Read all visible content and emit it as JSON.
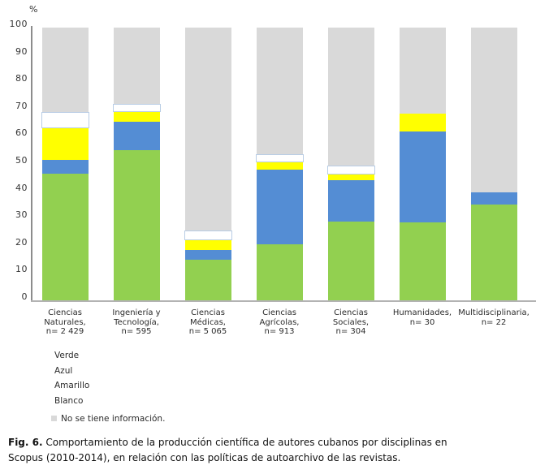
{
  "figure": {
    "caption": {
      "label": "Fig. 6.",
      "line1": "Comportamiento de la producción científica de autores cubanos por disciplinas en",
      "line2": "Scopus (2010-2014), en relación con las políticas de autoarchivo de las revistas."
    }
  },
  "chart_data": {
    "type": "bar",
    "stacked": true,
    "title": "",
    "unit_label": "%",
    "xlabel": "",
    "ylabel": "%",
    "ylim": [
      0,
      100
    ],
    "yticks": [
      0,
      10,
      20,
      30,
      40,
      50,
      60,
      70,
      80,
      90,
      100
    ],
    "grid": false,
    "legend_position": "bottom-left",
    "categories": [
      {
        "name": "Ciencias Naturales",
        "n_label": "n= 2 429",
        "lines": [
          "Ciencias",
          "Naturales,",
          "n= 2 429"
        ]
      },
      {
        "name": "Ingeniería y Tecnología",
        "n_label": "n= 595",
        "lines": [
          "Ingeniería y",
          "Tecnología,",
          "n= 595"
        ]
      },
      {
        "name": "Ciencias Médicas",
        "n_label": "n= 5 065",
        "lines": [
          "Ciencias",
          "Médicas,",
          "n= 5 065"
        ]
      },
      {
        "name": "Ciencias Agrícolas",
        "n_label": "n= 913",
        "lines": [
          "Ciencias",
          "Agrícolas,",
          "n= 913"
        ]
      },
      {
        "name": "Ciencias Sociales",
        "n_label": "n= 304",
        "lines": [
          "Ciencias",
          "Sociales,",
          "n= 304"
        ]
      },
      {
        "name": "Humanidades",
        "n_label": "n= 30",
        "lines": [
          "Humanidades,",
          "n= 30"
        ]
      },
      {
        "name": "Multidisciplinaria",
        "n_label": "n= 22",
        "lines": [
          "Multidisciplinaria,",
          "n= 22"
        ]
      }
    ],
    "series": [
      {
        "name": "Verde",
        "color": "#92D050",
        "border": null,
        "values": [
          46.5,
          55.0,
          15.0,
          20.5,
          29.0,
          28.5,
          35.0
        ]
      },
      {
        "name": "Azul",
        "color": "#548DD4",
        "border": null,
        "values": [
          5.0,
          10.5,
          3.5,
          27.5,
          15.0,
          33.5,
          4.5
        ]
      },
      {
        "name": "Amarillo",
        "color": "#FFFF00",
        "border": null,
        "values": [
          11.5,
          3.5,
          3.5,
          2.5,
          2.0,
          6.5,
          0
        ]
      },
      {
        "name": "Blanco",
        "color": "#FFFFFF",
        "border": "#B9CDE5",
        "values": [
          6.0,
          3.0,
          3.5,
          3.0,
          3.5,
          0,
          0
        ]
      },
      {
        "name": "No se tiene información.",
        "color": "#D9D9D9",
        "border": null,
        "values": [
          31.0,
          28.0,
          74.5,
          46.5,
          50.5,
          31.5,
          60.5
        ]
      }
    ],
    "legend": {
      "items": [
        {
          "label": "Verde",
          "swatch": null
        },
        {
          "label": "Azul",
          "swatch": null
        },
        {
          "label": "Amarillo",
          "swatch": null
        },
        {
          "label": "Blanco",
          "swatch": null
        },
        {
          "label": "No se tiene información.",
          "swatch": "#D9D9D9"
        }
      ]
    }
  }
}
